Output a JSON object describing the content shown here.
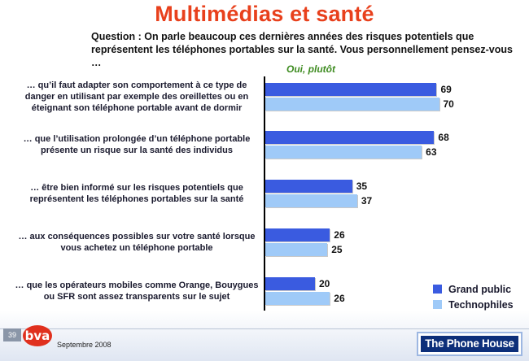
{
  "title": "Multimédias et santé",
  "question": "Question : On parle beaucoup ces dernières années des risques potentiels que représentent les téléphones portables sur la santé. Vous personnellement pensez-vous …",
  "subhead": "Oui, plutôt",
  "chart_data": {
    "type": "bar",
    "orientation": "horizontal",
    "categories": [
      "… qu’il faut adapter son comportement à ce type de danger en utilisant par exemple des oreillettes ou en éteignant son téléphone portable avant de dormir",
      "… que l’utilisation prolongée d’un téléphone portable présente un risque sur la santé des individus",
      "… être bien informé sur les risques potentiels que représentent les téléphones portables sur la santé",
      "… aux conséquences possibles sur votre santé lorsque vous achetez un téléphone portable",
      "… que les opérateurs mobiles comme Orange, Bouygues ou SFR sont assez transparents sur le sujet"
    ],
    "series": [
      {
        "name": "Grand public",
        "values": [
          69,
          68,
          35,
          26,
          20
        ],
        "color": "#3a5be0"
      },
      {
        "name": "Technophiles",
        "values": [
          70,
          63,
          37,
          25,
          26
        ],
        "color": "#9fcaf8"
      }
    ],
    "xlim": [
      0,
      100
    ],
    "legend_position": "bottom-right",
    "grid": false
  },
  "footer": {
    "page_number": "39",
    "bva_logo_text": "bva",
    "date": "Septembre 2008",
    "brand_logo_text": "The Phone House"
  }
}
